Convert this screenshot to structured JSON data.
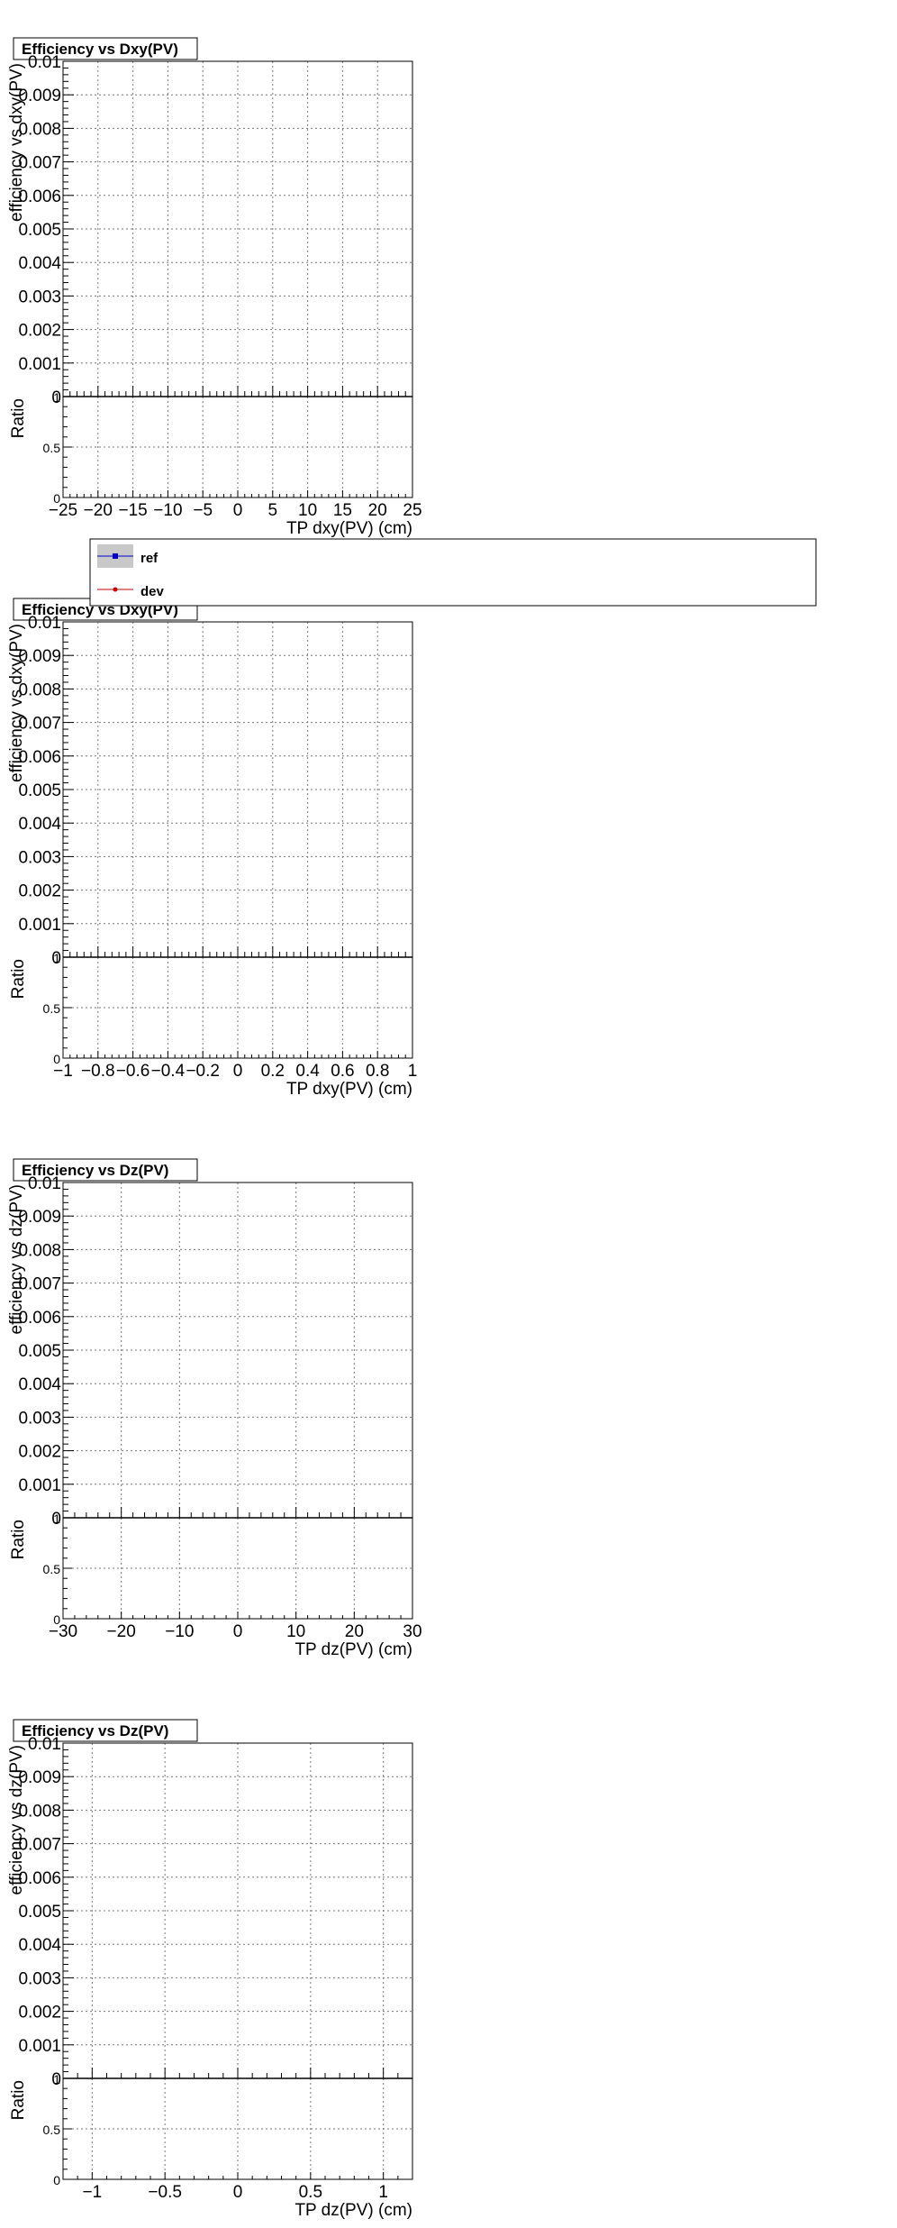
{
  "chart_data": [
    {
      "type": "line",
      "title": "Efficiency vs Dxy(PV)",
      "ylabel": "efficiency vs dxy(PV)",
      "xlabel": "TP dxy(PV) (cm)",
      "ratio_label": "Ratio",
      "xlim": [
        -25,
        25
      ],
      "ylim": [
        0,
        0.01
      ],
      "ratio_ylim": [
        0,
        1
      ],
      "x_ticks": [
        -25,
        -20,
        -15,
        -10,
        -5,
        0,
        5,
        10,
        15,
        20,
        25
      ],
      "x_tick_labels": [
        "−25",
        "−20",
        "−15",
        "−10",
        "−5",
        "0",
        "5",
        "10",
        "15",
        "20",
        "25"
      ],
      "x_minor_step": 1,
      "y_ticks": [
        0,
        0.001,
        0.002,
        0.003,
        0.004,
        0.005,
        0.006,
        0.007,
        0.008,
        0.009,
        0.01
      ],
      "y_tick_labels": [
        "0",
        "0.001",
        "0.002",
        "0.003",
        "0.004",
        "0.005",
        "0.006",
        "0.007",
        "0.008",
        "0.009",
        "0.01"
      ],
      "ratio_ticks": [
        0,
        0.5,
        1
      ],
      "ratio_tick_labels": [
        "0",
        "0.5",
        "1"
      ],
      "grid": true,
      "series": []
    },
    {
      "type": "line",
      "title": "Efficiency vs Dxy(PV)",
      "ylabel": "efficiency vs dxy(PV)",
      "xlabel": "TP dxy(PV) (cm)",
      "ratio_label": "Ratio",
      "xlim": [
        -1,
        1
      ],
      "ylim": [
        0,
        0.01
      ],
      "ratio_ylim": [
        0,
        1
      ],
      "x_ticks": [
        -1,
        -0.8,
        -0.6,
        -0.4,
        -0.2,
        0,
        0.2,
        0.4,
        0.6,
        0.8,
        1
      ],
      "x_tick_labels": [
        "−1",
        "−0.8",
        "−0.6",
        "−0.4",
        "−0.2",
        "0",
        "0.2",
        "0.4",
        "0.6",
        "0.8",
        "1"
      ],
      "x_minor_step": 0.04,
      "y_ticks": [
        0,
        0.001,
        0.002,
        0.003,
        0.004,
        0.005,
        0.006,
        0.007,
        0.008,
        0.009,
        0.01
      ],
      "y_tick_labels": [
        "0",
        "0.001",
        "0.002",
        "0.003",
        "0.004",
        "0.005",
        "0.006",
        "0.007",
        "0.008",
        "0.009",
        "0.01"
      ],
      "ratio_ticks": [
        0,
        0.5,
        1
      ],
      "ratio_tick_labels": [
        "0",
        "0.5",
        "1"
      ],
      "grid": true,
      "series": []
    },
    {
      "type": "line",
      "title": "Efficiency vs Dz(PV)",
      "ylabel": "efficiency vs dz(PV)",
      "xlabel": "TP dz(PV) (cm)",
      "ratio_label": "Ratio",
      "xlim": [
        -30,
        30
      ],
      "ylim": [
        0,
        0.01
      ],
      "ratio_ylim": [
        0,
        1
      ],
      "x_ticks": [
        -30,
        -20,
        -10,
        0,
        10,
        20,
        30
      ],
      "x_tick_labels": [
        "−30",
        "−20",
        "−10",
        "0",
        "10",
        "20",
        "30"
      ],
      "x_minor_step": 2,
      "y_ticks": [
        0,
        0.001,
        0.002,
        0.003,
        0.004,
        0.005,
        0.006,
        0.007,
        0.008,
        0.009,
        0.01
      ],
      "y_tick_labels": [
        "0",
        "0.001",
        "0.002",
        "0.003",
        "0.004",
        "0.005",
        "0.006",
        "0.007",
        "0.008",
        "0.009",
        "0.01"
      ],
      "ratio_ticks": [
        0,
        0.5,
        1
      ],
      "ratio_tick_labels": [
        "0",
        "0.5",
        "1"
      ],
      "grid": true,
      "series": []
    },
    {
      "type": "line",
      "title": "Efficiency vs Dz(PV)",
      "ylabel": "efficiency vs dz(PV)",
      "xlabel": "TP dz(PV) (cm)",
      "ratio_label": "Ratio",
      "xlim": [
        -1.2,
        1.2
      ],
      "ylim": [
        0,
        0.01
      ],
      "ratio_ylim": [
        0,
        1
      ],
      "x_ticks": [
        -1,
        -0.5,
        0,
        0.5,
        1
      ],
      "x_tick_labels": [
        "−1",
        "−0.5",
        "0",
        "0.5",
        "1"
      ],
      "x_minor_step": 0.1,
      "y_ticks": [
        0,
        0.001,
        0.002,
        0.003,
        0.004,
        0.005,
        0.006,
        0.007,
        0.008,
        0.009,
        0.01
      ],
      "y_tick_labels": [
        "0",
        "0.001",
        "0.002",
        "0.003",
        "0.004",
        "0.005",
        "0.006",
        "0.007",
        "0.008",
        "0.009",
        "0.01"
      ],
      "ratio_ticks": [
        0,
        0.5,
        1
      ],
      "ratio_tick_labels": [
        "0",
        "0.5",
        "1"
      ],
      "grid": true,
      "series": []
    }
  ],
  "legend": {
    "placement": "upper-middle",
    "entries": [
      {
        "name": "ref",
        "color": "#0000cc",
        "fill": "#c8c8c8"
      },
      {
        "name": "dev",
        "color": "#cc0000"
      }
    ]
  }
}
